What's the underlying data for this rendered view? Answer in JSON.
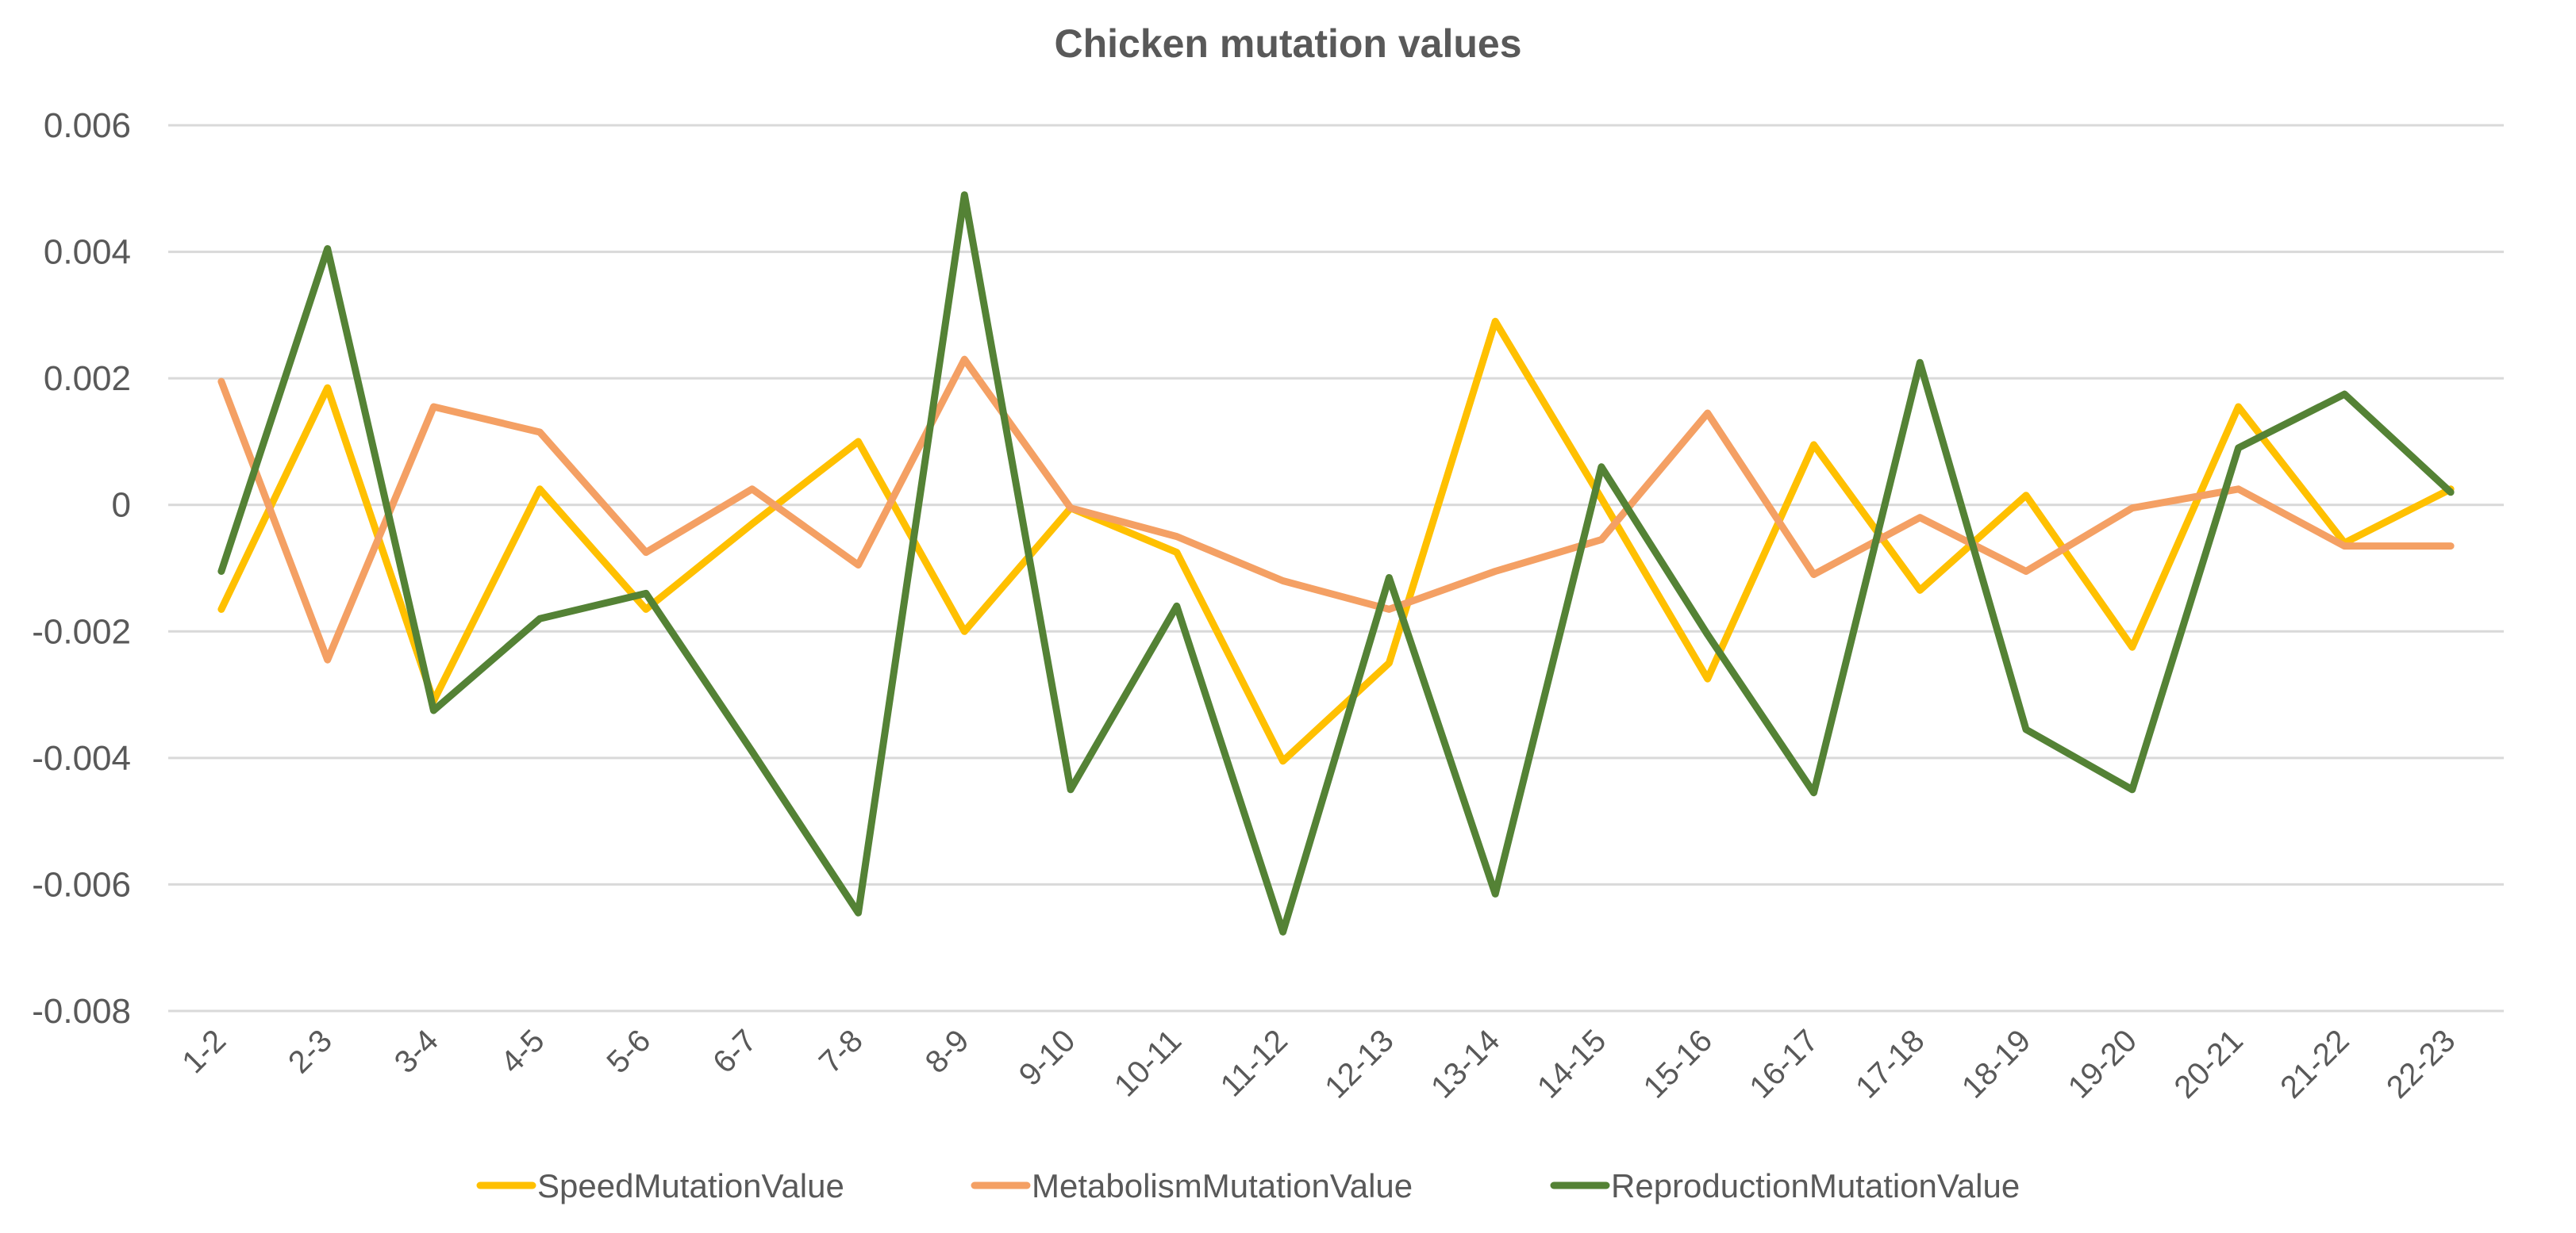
{
  "chart_data": {
    "type": "line",
    "title": "Chicken mutation values",
    "xlabel": "",
    "ylabel": "",
    "ylim": [
      -0.008,
      0.006
    ],
    "yticks": [
      "0.006",
      "0.004",
      "0.002",
      "0",
      "-0.002",
      "-0.004",
      "-0.006",
      "-0.008"
    ],
    "ytick_values": [
      0.006,
      0.004,
      0.002,
      0,
      -0.002,
      -0.004,
      -0.006,
      -0.008
    ],
    "grid": true,
    "legend_position": "bottom",
    "categories": [
      "1-2",
      "2-3",
      "3-4",
      "4-5",
      "5-6",
      "6-7",
      "7-8",
      "8-9",
      "9-10",
      "10-11",
      "11-12",
      "12-13",
      "13-14",
      "14-15",
      "15-16",
      "16-17",
      "17-18",
      "18-19",
      "19-20",
      "20-21",
      "21-22",
      "22-23"
    ],
    "series": [
      {
        "name": "SpeedMutationValue",
        "color": "#ffc000",
        "values": [
          -0.00165,
          0.00185,
          -0.0031,
          0.00025,
          -0.00165,
          -0.0003,
          0.001,
          -0.002,
          -5e-05,
          -0.00075,
          -0.00405,
          -0.0025,
          0.0029,
          0.0001,
          -0.00275,
          0.00095,
          -0.00135,
          0.00015,
          -0.00225,
          0.00155,
          -0.0006,
          0.00025
        ]
      },
      {
        "name": "MetabolismMutationValue",
        "color": "#f4a064",
        "values": [
          0.00195,
          -0.00245,
          0.00155,
          0.00115,
          -0.00075,
          0.00025,
          -0.00095,
          0.0023,
          -5e-05,
          -0.0005,
          -0.0012,
          -0.00165,
          -0.00105,
          -0.00055,
          0.00145,
          -0.0011,
          -0.0002,
          -0.00105,
          -5e-05,
          0.00025,
          -0.00065,
          -0.00065
        ]
      },
      {
        "name": "ReproductionMutationValue",
        "color": "#548235",
        "values": [
          -0.00105,
          0.00405,
          -0.00325,
          -0.0018,
          -0.0014,
          -0.0039,
          -0.00645,
          0.0049,
          -0.0045,
          -0.0016,
          -0.00675,
          -0.00115,
          -0.00615,
          0.0006,
          -0.00205,
          -0.00455,
          0.00225,
          -0.00355,
          -0.0045,
          0.0009,
          0.00175,
          0.0002
        ]
      }
    ]
  }
}
